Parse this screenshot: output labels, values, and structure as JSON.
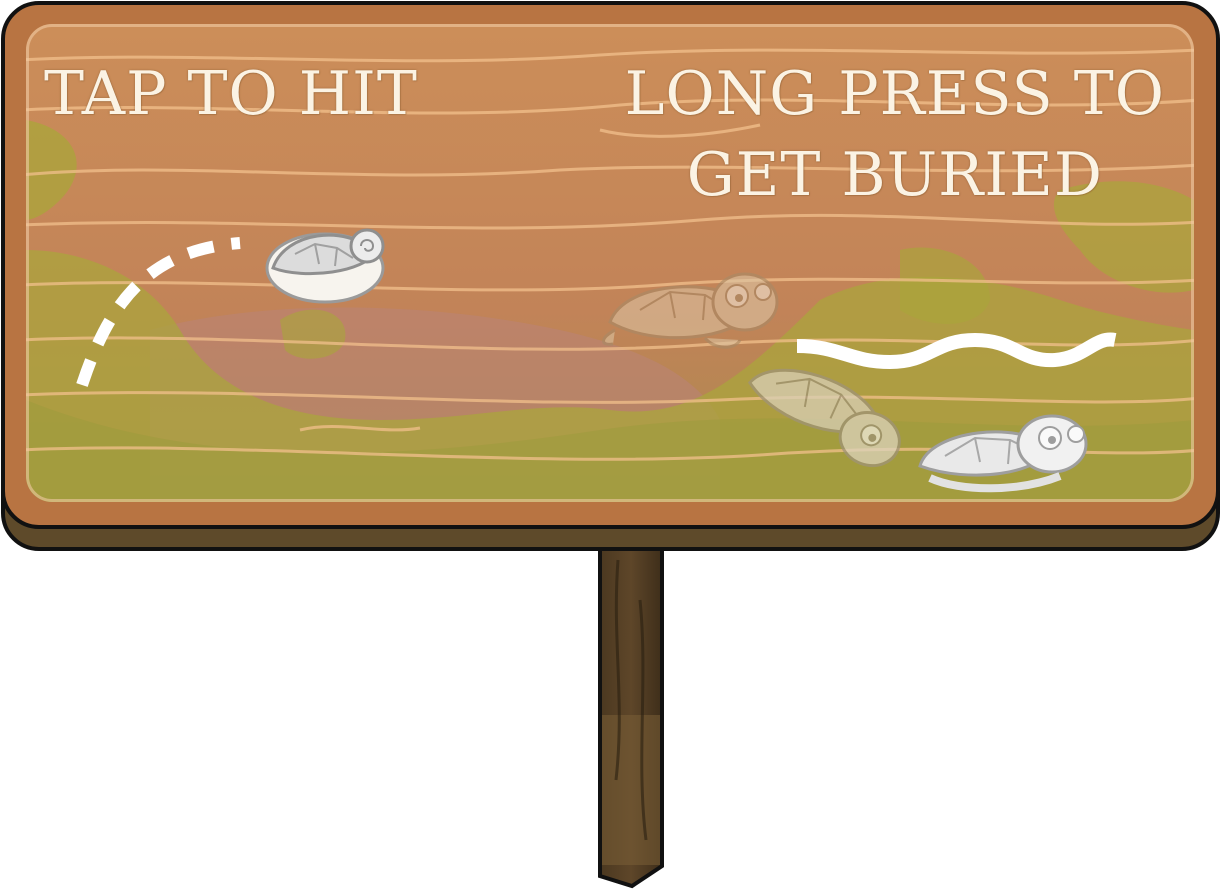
{
  "instructions": {
    "tap_text": "TAP TO HIT",
    "long_press_line1": "LONG PRESS TO",
    "long_press_line2": "GET BURIED"
  },
  "colors": {
    "board_wood": "#c98c5c",
    "board_frame": "#b97540",
    "sand_green": "#a9a63a",
    "post_wood": "#5a4326",
    "chalk_white": "#fbf3e4"
  },
  "icons": {
    "tap_demo": "turtle-in-shell-icon",
    "press_demo": [
      "turtle-crawling-icon",
      "turtle-burrowing-icon",
      "turtle-buried-icon"
    ]
  }
}
